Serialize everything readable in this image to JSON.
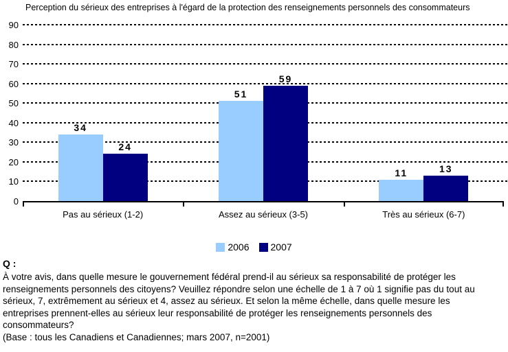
{
  "chart_data": {
    "type": "bar",
    "title": "Perception du sérieux des entreprises à l'égard de la protection des renseignements personnels des consommateurs",
    "categories": [
      "Pas au sérieux (1-2)",
      "Assez au sérieux (3-5)",
      "Très au sérieux (6-7)"
    ],
    "series": [
      {
        "name": "2006",
        "color": "#99CCFF",
        "values": [
          34,
          51,
          11
        ]
      },
      {
        "name": "2007",
        "color": "#000080",
        "values": [
          24,
          59,
          13
        ]
      }
    ],
    "ylim": [
      0,
      90
    ],
    "ytick_step": 10,
    "grid": "horizontal-dotted",
    "legend_position": "bottom-center",
    "xlabel": "",
    "ylabel": ""
  },
  "footnote": {
    "q_label": "Q :",
    "question": "À votre avis, dans quelle mesure le gouvernement fédéral prend-il au sérieux sa responsabilité de protéger les renseignements personnels des citoyens? Veuillez répondre selon une échelle de 1 à 7 où 1 signifie pas du tout au sérieux, 7, extrêmement au sérieux et 4, assez au sérieux. Et selon la même échelle, dans quelle mesure les entreprises prennent-elles au sérieux leur responsabilité de protéger les renseignements personnels des consommateurs?",
    "base": "(Base : tous les Canadiens et Canadiennes; mars 2007, n=2001)"
  }
}
